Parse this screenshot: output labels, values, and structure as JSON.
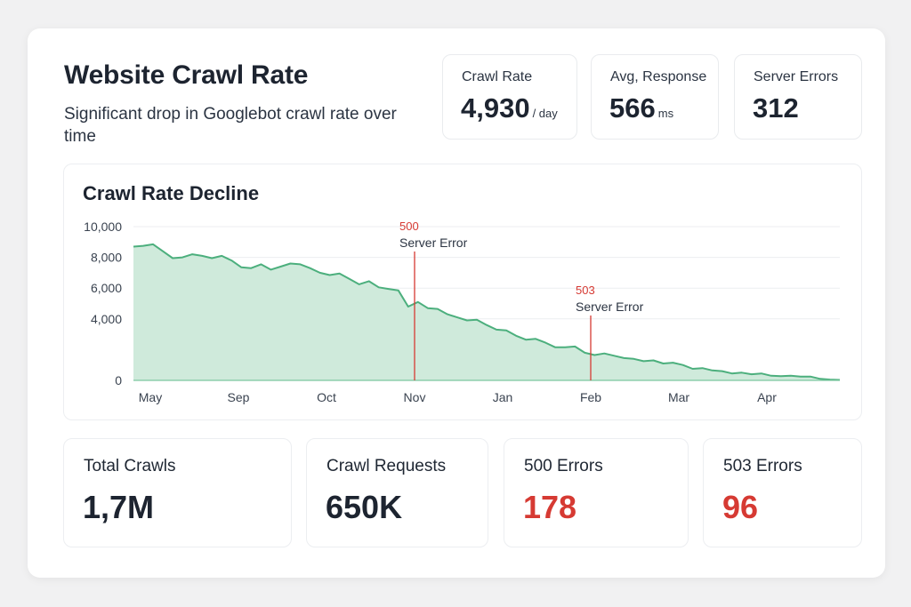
{
  "header": {
    "title": "Website Crawl Rate",
    "subtitle": "Significant drop in Googlebot crawl rate over time"
  },
  "stats": [
    {
      "label": "Crawl Rate",
      "value": "4,930",
      "unit": "/ day"
    },
    {
      "label": "Avg, Response",
      "value": "566",
      "unit": "ms"
    },
    {
      "label": "Server Errors",
      "value": "312",
      "unit": ""
    }
  ],
  "metrics": [
    {
      "label": "Total Crawls",
      "value": "1,7M",
      "color": "#1d2430"
    },
    {
      "label": "Crawl Requests",
      "value": "650K",
      "color": "#1d2430"
    },
    {
      "label": "500 Errors",
      "value": "178",
      "color": "#d63a33"
    },
    {
      "label": "503 Errors",
      "value": "96",
      "color": "#d63a33"
    }
  ],
  "colors": {
    "line": "#4caf7d",
    "area": "#cfeadb",
    "error": "#d63a33",
    "grid": "#eceef1"
  },
  "chart_data": {
    "type": "area",
    "title": "Crawl Rate Decline",
    "xlabel": "",
    "ylabel": "",
    "ylim": [
      0,
      10000
    ],
    "y_ticks": [
      0,
      4000,
      6000,
      8000,
      10000
    ],
    "y_tick_labels": [
      "0",
      "4,000",
      "6,000",
      "8,000",
      "10,000"
    ],
    "x_tick_labels": [
      "May",
      "Sep",
      "Oct",
      "Nov",
      "Jan",
      "Feb",
      "Mar",
      "Apr"
    ],
    "grid": true,
    "series": [
      {
        "values": [
          8700,
          8750,
          8850,
          8400,
          7950,
          8000,
          8200,
          8100,
          7950,
          8100,
          7800,
          7350,
          7300,
          7550,
          7200,
          7400,
          7600,
          7550,
          7300,
          7000,
          6850,
          6950,
          6600,
          6250,
          6450,
          6050,
          5950,
          5850,
          4800,
          5100,
          4700,
          4650,
          4300,
          4100,
          3900,
          3950,
          3600,
          3300,
          3250,
          2900,
          2650,
          2700,
          2450,
          2150,
          2150,
          2200,
          1800,
          1650,
          1750,
          1600,
          1450,
          1400,
          1250,
          1300,
          1100,
          1150,
          1000,
          750,
          800,
          650,
          600,
          450,
          500,
          400,
          450,
          300,
          280,
          300,
          250,
          250,
          100,
          50,
          30
        ]
      }
    ],
    "annotations": [
      {
        "x_label": "Nov",
        "code": "500",
        "text": "Server Error"
      },
      {
        "x_label": "Feb",
        "code": "503",
        "text": "Server Error"
      }
    ]
  }
}
